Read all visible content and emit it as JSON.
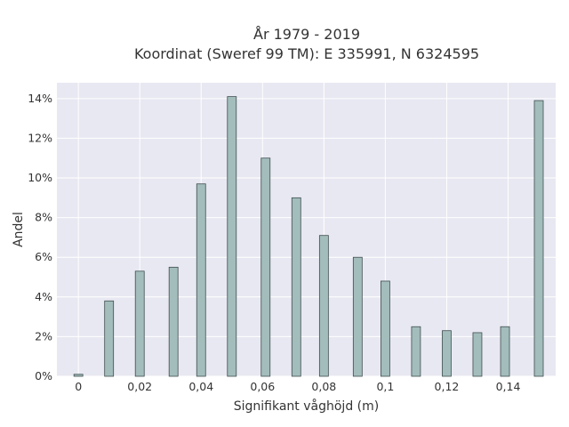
{
  "chart_data": {
    "type": "bar",
    "title_line1": "År 1979 - 2019",
    "title_line2": "Koordinat (Sweref 99 TM): E 335991, N 6324595",
    "xlabel": "Signifikant våghöjd (m)",
    "ylabel": "Andel",
    "xlim": [
      -0.007,
      0.1555
    ],
    "ylim": [
      0,
      14.8
    ],
    "x_ticks": [
      {
        "value": 0,
        "label": "0"
      },
      {
        "value": 0.02,
        "label": "0,02"
      },
      {
        "value": 0.04,
        "label": "0,04"
      },
      {
        "value": 0.06,
        "label": "0,06"
      },
      {
        "value": 0.08,
        "label": "0,08"
      },
      {
        "value": 0.1,
        "label": "0,1"
      },
      {
        "value": 0.12,
        "label": "0,12"
      },
      {
        "value": 0.14,
        "label": "0,14"
      }
    ],
    "y_ticks": [
      {
        "value": 0,
        "label": "0%"
      },
      {
        "value": 2,
        "label": "2%"
      },
      {
        "value": 4,
        "label": "4%"
      },
      {
        "value": 6,
        "label": "6%"
      },
      {
        "value": 8,
        "label": "8%"
      },
      {
        "value": 10,
        "label": "10%"
      },
      {
        "value": 12,
        "label": "12%"
      },
      {
        "value": 14,
        "label": "14%"
      }
    ],
    "x": [
      0.0,
      0.01,
      0.02,
      0.031,
      0.04,
      0.05,
      0.061,
      0.071,
      0.08,
      0.091,
      0.1,
      0.11,
      0.12,
      0.13,
      0.139,
      0.15
    ],
    "values": [
      0.1,
      3.8,
      5.3,
      5.5,
      9.7,
      14.1,
      11.0,
      9.0,
      7.1,
      6.0,
      4.8,
      2.5,
      2.3,
      2.2,
      2.5,
      13.9
    ],
    "grid": true,
    "colors": {
      "bar_fill": "#a3bcbc",
      "bar_stroke": "#3f4f4f",
      "plot_bg": "#e8e8f2",
      "grid": "#ffffff"
    }
  }
}
